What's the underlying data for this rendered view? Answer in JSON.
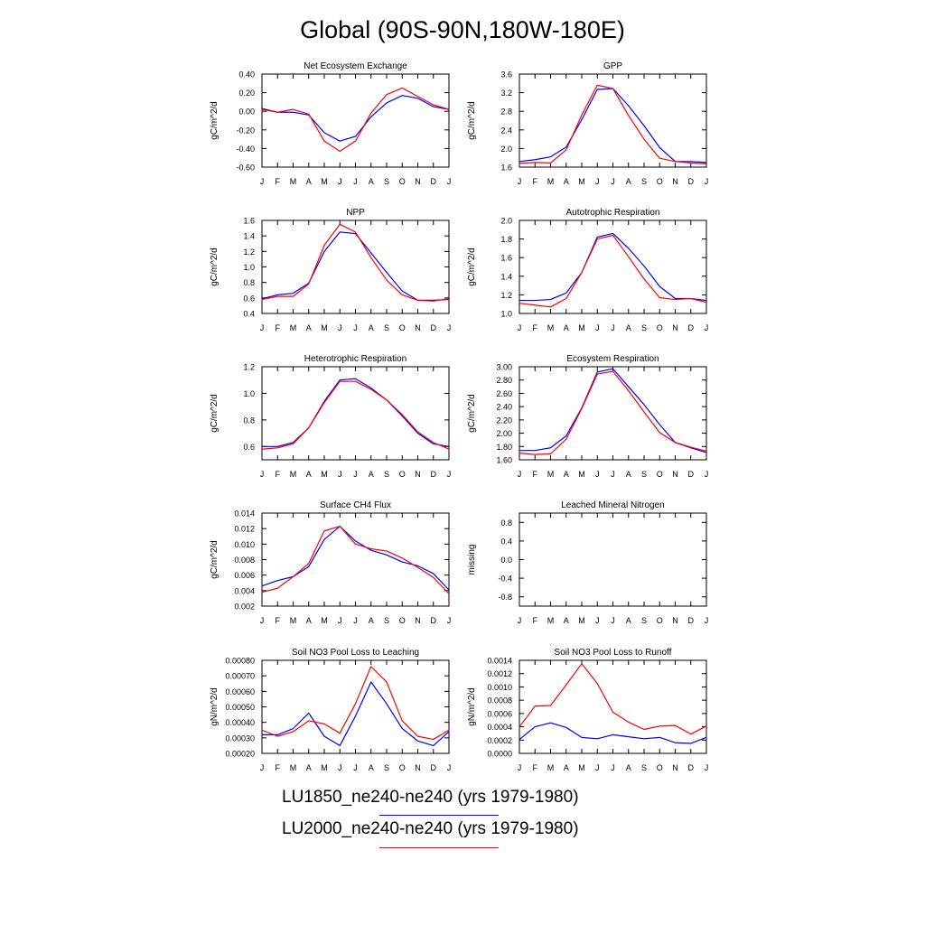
{
  "title": "Global (90S-90N,180W-180E)",
  "colors": {
    "LU1850": "#0000ff",
    "LU2000": "#ff0000",
    "axis": "#000000"
  },
  "legend": [
    {
      "label": "LU1850_ne240-ne240 (yrs 1979-1980)",
      "color": "#0000ff"
    },
    {
      "label": "LU2000_ne240-ne240 (yrs 1979-1980)",
      "color": "#ff0000"
    }
  ],
  "chart_data": [
    {
      "type": "line",
      "title": "Net Ecosystem Exchange",
      "ylabel": "gC/m^2/d",
      "categories": [
        "J",
        "F",
        "M",
        "A",
        "M",
        "J",
        "J",
        "A",
        "S",
        "O",
        "N",
        "D",
        "J"
      ],
      "ylim": [
        -0.6,
        0.4
      ],
      "yticks": [
        -0.6,
        -0.4,
        -0.2,
        0.0,
        0.2,
        0.4
      ],
      "ytick_labels": [
        "-0.60",
        "-0.40",
        "-0.20",
        "0.00",
        "0.20",
        "0.40"
      ],
      "series": [
        {
          "name": "LU1850_ne240-ne240 (yrs 1979-1980)",
          "color": "#0000ff",
          "values": [
            0.03,
            -0.01,
            -0.01,
            -0.04,
            -0.23,
            -0.32,
            -0.27,
            -0.06,
            0.09,
            0.17,
            0.14,
            0.05,
            0.02
          ]
        },
        {
          "name": "LU2000_ne240-ne240 (yrs 1979-1980)",
          "color": "#ff0000",
          "values": [
            0.02,
            -0.01,
            0.02,
            -0.03,
            -0.32,
            -0.43,
            -0.32,
            -0.02,
            0.18,
            0.25,
            0.16,
            0.07,
            0.02
          ]
        }
      ]
    },
    {
      "type": "line",
      "title": "GPP",
      "ylabel": "gC/m^2/d",
      "categories": [
        "J",
        "F",
        "M",
        "A",
        "M",
        "J",
        "J",
        "A",
        "S",
        "O",
        "N",
        "D",
        "J"
      ],
      "ylim": [
        1.6,
        3.6
      ],
      "yticks": [
        1.6,
        2.0,
        2.4,
        2.8,
        3.2,
        3.6
      ],
      "ytick_labels": [
        "1.6",
        "2.0",
        "2.4",
        "2.8",
        "3.2",
        "3.6"
      ],
      "series": [
        {
          "name": "LU1850_ne240-ne240 (yrs 1979-1980)",
          "color": "#0000ff",
          "values": [
            1.72,
            1.76,
            1.82,
            2.03,
            2.62,
            3.27,
            3.29,
            2.92,
            2.49,
            2.02,
            1.72,
            1.72,
            1.7
          ]
        },
        {
          "name": "LU2000_ne240-ne240 (yrs 1979-1980)",
          "color": "#ff0000",
          "values": [
            1.68,
            1.7,
            1.69,
            1.97,
            2.72,
            3.36,
            3.29,
            2.71,
            2.2,
            1.79,
            1.72,
            1.69,
            1.67
          ]
        }
      ]
    },
    {
      "type": "line",
      "title": "NPP",
      "ylabel": "gC/m^2/d",
      "categories": [
        "J",
        "F",
        "M",
        "A",
        "M",
        "J",
        "J",
        "A",
        "S",
        "O",
        "N",
        "D",
        "J"
      ],
      "ylim": [
        0.4,
        1.6
      ],
      "yticks": [
        0.4,
        0.6,
        0.8,
        1.0,
        1.2,
        1.4,
        1.6
      ],
      "ytick_labels": [
        "0.4",
        "0.6",
        "0.8",
        "1.0",
        "1.2",
        "1.4",
        "1.6"
      ],
      "series": [
        {
          "name": "LU1850_ne240-ne240 (yrs 1979-1980)",
          "color": "#0000ff",
          "values": [
            0.59,
            0.64,
            0.66,
            0.79,
            1.2,
            1.45,
            1.43,
            1.18,
            0.93,
            0.69,
            0.57,
            0.57,
            0.58
          ]
        },
        {
          "name": "LU2000_ne240-ne240 (yrs 1979-1980)",
          "color": "#ff0000",
          "values": [
            0.58,
            0.62,
            0.62,
            0.78,
            1.28,
            1.55,
            1.45,
            1.12,
            0.83,
            0.64,
            0.57,
            0.56,
            0.59
          ]
        }
      ]
    },
    {
      "type": "line",
      "title": "Autotrophic Respiration",
      "ylabel": "gC/m^2/d",
      "categories": [
        "J",
        "F",
        "M",
        "A",
        "M",
        "J",
        "J",
        "A",
        "S",
        "O",
        "N",
        "D",
        "J"
      ],
      "ylim": [
        1.0,
        2.0
      ],
      "yticks": [
        1.0,
        1.2,
        1.4,
        1.6,
        1.8,
        2.0
      ],
      "ytick_labels": [
        "1.0",
        "1.2",
        "1.4",
        "1.6",
        "1.8",
        "2.0"
      ],
      "series": [
        {
          "name": "LU1850_ne240-ne240 (yrs 1979-1980)",
          "color": "#0000ff",
          "values": [
            1.14,
            1.14,
            1.15,
            1.22,
            1.44,
            1.82,
            1.86,
            1.7,
            1.51,
            1.29,
            1.16,
            1.16,
            1.14
          ]
        },
        {
          "name": "LU2000_ne240-ne240 (yrs 1979-1980)",
          "color": "#ff0000",
          "values": [
            1.11,
            1.09,
            1.07,
            1.16,
            1.44,
            1.8,
            1.84,
            1.61,
            1.37,
            1.17,
            1.15,
            1.16,
            1.12
          ]
        }
      ]
    },
    {
      "type": "line",
      "title": "Heterotrophic Respiration",
      "ylabel": "gC/m^2/d",
      "categories": [
        "J",
        "F",
        "M",
        "A",
        "M",
        "J",
        "J",
        "A",
        "S",
        "O",
        "N",
        "D",
        "J"
      ],
      "ylim": [
        0.5,
        1.2
      ],
      "yticks": [
        0.6,
        0.8,
        1.0,
        1.2
      ],
      "ytick_labels": [
        "0.6",
        "0.8",
        "1.0",
        "1.2"
      ],
      "series": [
        {
          "name": "LU1850_ne240-ne240 (yrs 1979-1980)",
          "color": "#0000ff",
          "values": [
            0.6,
            0.6,
            0.63,
            0.74,
            0.94,
            1.1,
            1.11,
            1.04,
            0.95,
            0.83,
            0.7,
            0.62,
            0.6
          ]
        },
        {
          "name": "LU2000_ne240-ne240 (yrs 1979-1980)",
          "color": "#ff0000",
          "values": [
            0.58,
            0.59,
            0.62,
            0.74,
            0.93,
            1.09,
            1.09,
            1.03,
            0.95,
            0.84,
            0.71,
            0.63,
            0.58
          ]
        }
      ]
    },
    {
      "type": "line",
      "title": "Ecosystem Respiration",
      "ylabel": "gC/m^2/d",
      "categories": [
        "J",
        "F",
        "M",
        "A",
        "M",
        "J",
        "J",
        "A",
        "S",
        "O",
        "N",
        "D",
        "J"
      ],
      "ylim": [
        1.6,
        3.0
      ],
      "yticks": [
        1.6,
        1.8,
        2.0,
        2.2,
        2.4,
        2.6,
        2.8,
        3.0
      ],
      "ytick_labels": [
        "1.60",
        "1.80",
        "2.00",
        "2.20",
        "2.40",
        "2.60",
        "2.80",
        "3.00"
      ],
      "series": [
        {
          "name": "LU1850_ne240-ne240 (yrs 1979-1980)",
          "color": "#0000ff",
          "values": [
            1.74,
            1.74,
            1.78,
            1.96,
            2.38,
            2.92,
            2.97,
            2.7,
            2.43,
            2.13,
            1.86,
            1.78,
            1.71
          ]
        },
        {
          "name": "LU2000_ne240-ne240 (yrs 1979-1980)",
          "color": "#ff0000",
          "values": [
            1.7,
            1.68,
            1.69,
            1.91,
            2.37,
            2.89,
            2.93,
            2.64,
            2.32,
            2.01,
            1.86,
            1.79,
            1.73
          ]
        }
      ]
    },
    {
      "type": "line",
      "title": "Surface CH4 Flux",
      "ylabel": "gC/m^2/d",
      "categories": [
        "J",
        "F",
        "M",
        "A",
        "M",
        "J",
        "J",
        "A",
        "S",
        "O",
        "N",
        "D",
        "J"
      ],
      "ylim": [
        0.002,
        0.014
      ],
      "yticks": [
        0.002,
        0.004,
        0.006,
        0.008,
        0.01,
        0.012,
        0.014
      ],
      "ytick_labels": [
        "0.002",
        "0.004",
        "0.006",
        "0.008",
        "0.010",
        "0.012",
        "0.014"
      ],
      "series": [
        {
          "name": "LU1850_ne240-ne240 (yrs 1979-1980)",
          "color": "#0000ff",
          "values": [
            0.0046,
            0.0053,
            0.0058,
            0.0071,
            0.0106,
            0.0123,
            0.0104,
            0.0092,
            0.0086,
            0.0077,
            0.0072,
            0.0062,
            0.0041
          ]
        },
        {
          "name": "LU2000_ne240-ne240 (yrs 1979-1980)",
          "color": "#ff0000",
          "values": [
            0.0038,
            0.0043,
            0.0058,
            0.0075,
            0.0117,
            0.0123,
            0.01,
            0.0094,
            0.0091,
            0.0082,
            0.007,
            0.0057,
            0.0036
          ]
        }
      ]
    },
    {
      "type": "line",
      "title": "Leached Mineral Nitrogen",
      "ylabel": "missing",
      "categories": [
        "J",
        "F",
        "M",
        "A",
        "M",
        "J",
        "J",
        "A",
        "S",
        "O",
        "N",
        "D",
        "J"
      ],
      "ylim": [
        -1.0,
        1.0
      ],
      "yticks": [
        -0.8,
        -0.4,
        0.0,
        0.4,
        0.8
      ],
      "ytick_labels": [
        "-0.8",
        "-0.4",
        "0.0",
        "0.4",
        "0.8"
      ],
      "series": []
    },
    {
      "type": "line",
      "title": "Soil NO3 Pool Loss to Leaching",
      "ylabel": "gN/m^2/d",
      "categories": [
        "J",
        "F",
        "M",
        "A",
        "M",
        "J",
        "J",
        "A",
        "S",
        "O",
        "N",
        "D",
        "J"
      ],
      "ylim": [
        0.0002,
        0.0008
      ],
      "yticks": [
        0.0002,
        0.0003,
        0.0004,
        0.0005,
        0.0006,
        0.0007,
        0.0008
      ],
      "ytick_labels": [
        "0.00020",
        "0.00030",
        "0.00040",
        "0.00050",
        "0.00060",
        "0.00070",
        "0.00080"
      ],
      "series": [
        {
          "name": "LU1850_ne240-ne240 (yrs 1979-1980)",
          "color": "#0000ff",
          "values": [
            0.00032,
            0.00032,
            0.00036,
            0.00046,
            0.00031,
            0.00025,
            0.00044,
            0.00066,
            0.00052,
            0.00036,
            0.00028,
            0.00025,
            0.00034
          ]
        },
        {
          "name": "LU2000_ne240-ne240 (yrs 1979-1980)",
          "color": "#ff0000",
          "values": [
            0.00035,
            0.00031,
            0.00034,
            0.00041,
            0.00039,
            0.00033,
            0.00052,
            0.00076,
            0.00066,
            0.00041,
            0.00031,
            0.00029,
            0.00035
          ]
        }
      ]
    },
    {
      "type": "line",
      "title": "Soil NO3 Pool Loss to Runoff",
      "ylabel": "gN/m^2/d",
      "categories": [
        "J",
        "F",
        "M",
        "A",
        "M",
        "J",
        "J",
        "A",
        "S",
        "O",
        "N",
        "D",
        "J"
      ],
      "ylim": [
        0.0,
        0.0014
      ],
      "yticks": [
        0.0,
        0.0002,
        0.0004,
        0.0006,
        0.0008,
        0.001,
        0.0012,
        0.0014
      ],
      "ytick_labels": [
        "0.0000",
        "0.0002",
        "0.0004",
        "0.0006",
        "0.0008",
        "0.0010",
        "0.0012",
        "0.0014"
      ],
      "series": [
        {
          "name": "LU1850_ne240-ne240 (yrs 1979-1980)",
          "color": "#0000ff",
          "values": [
            0.00021,
            0.0004,
            0.00046,
            0.00039,
            0.00024,
            0.00022,
            0.00028,
            0.00025,
            0.00022,
            0.00024,
            0.00016,
            0.00015,
            0.00024
          ]
        },
        {
          "name": "LU2000_ne240-ne240 (yrs 1979-1980)",
          "color": "#ff0000",
          "values": [
            0.0004,
            0.00071,
            0.00072,
            0.00103,
            0.00135,
            0.00105,
            0.00062,
            0.00047,
            0.00036,
            0.00041,
            0.00042,
            0.00029,
            0.00041
          ]
        }
      ]
    }
  ]
}
